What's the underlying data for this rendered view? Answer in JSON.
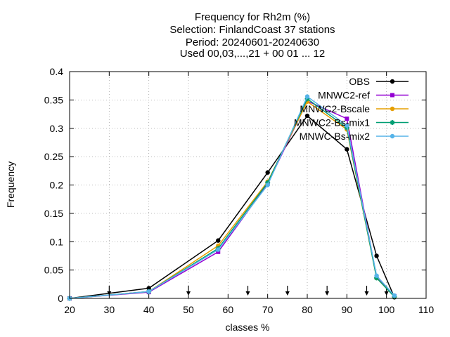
{
  "chart_data": {
    "type": "line",
    "title_lines": [
      "Frequency  for Rh2m (%)",
      "Selection: FinlandCoast      37 stations",
      "Period: 20240601-20240630",
      "Used 00,03,...,21 + 00 01 ... 12"
    ],
    "xlabel": "classes %",
    "ylabel": "Frequency",
    "xlim": [
      20,
      110
    ],
    "ylim": [
      0,
      0.4
    ],
    "x_ticks": [
      "20",
      "30",
      "40",
      "50",
      "60",
      "70",
      "80",
      "90",
      "100",
      "110"
    ],
    "y_ticks": [
      "0",
      "0.05",
      "0.1",
      "0.15",
      "0.2",
      "0.25",
      "0.3",
      "0.35",
      "0.4"
    ],
    "class_bounds": [
      30,
      50,
      65,
      75,
      85,
      95,
      100
    ],
    "legend_position": "top-right",
    "series": [
      {
        "name": "OBS",
        "color": "#000000",
        "marker": "circle",
        "x": [
          20,
          40,
          57.5,
          70,
          80,
          90,
          97.5,
          102
        ],
        "y": [
          0.0,
          0.018,
          0.102,
          0.222,
          0.322,
          0.263,
          0.075,
          0.002
        ]
      },
      {
        "name": "MNWC2-ref",
        "color": "#9400d3",
        "marker": "square",
        "x": [
          20,
          40,
          57.5,
          70,
          80,
          90,
          97.5,
          102
        ],
        "y": [
          0.0,
          0.011,
          0.082,
          0.202,
          0.348,
          0.317,
          0.037,
          0.004
        ]
      },
      {
        "name": "MNWC2-Bscale",
        "color": "#e69f00",
        "marker": "circle",
        "x": [
          20,
          40,
          57.5,
          70,
          80,
          90,
          97.5,
          102
        ],
        "y": [
          0.0,
          0.012,
          0.093,
          0.206,
          0.347,
          0.298,
          0.036,
          0.003
        ]
      },
      {
        "name": "MNWC2-Bs-mix1",
        "color": "#009e73",
        "marker": "star",
        "x": [
          20,
          40,
          57.5,
          70,
          80,
          90,
          97.5,
          102
        ],
        "y": [
          0.0,
          0.012,
          0.088,
          0.204,
          0.352,
          0.301,
          0.036,
          0.003
        ]
      },
      {
        "name": "MNWC-Bs-mix2",
        "color": "#56b4e9",
        "marker": "circle",
        "x": [
          20,
          40,
          57.5,
          70,
          80,
          90,
          97.5,
          102
        ],
        "y": [
          0.0,
          0.012,
          0.086,
          0.2,
          0.356,
          0.305,
          0.04,
          0.005
        ]
      }
    ]
  }
}
